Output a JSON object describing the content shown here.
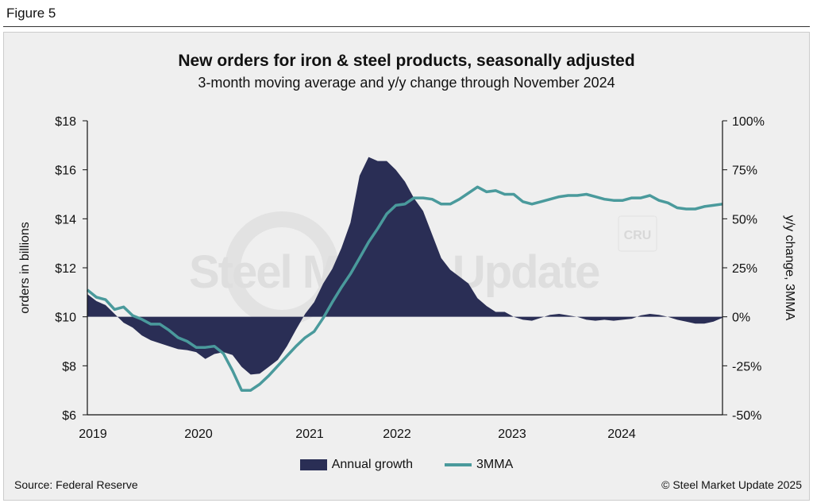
{
  "figure_label": "Figure 5",
  "source": "Source: Federal Reserve",
  "copyright": "© Steel Market Update 2025",
  "watermark": "Steel Market Update",
  "watermark_badge": "CRU",
  "chart_data": {
    "type": "line",
    "title": "New orders for iron & steel products, seasonally adjusted",
    "subtitle": "3-month moving average and y/y change through November 2024",
    "ylabel": "orders in billions",
    "y2label": "y/y change, 3MMA",
    "ylim": [
      6,
      18
    ],
    "y2lim": [
      -50,
      100
    ],
    "yticks": [
      "$18",
      "$16",
      "$14",
      "$12",
      "$10",
      "$8",
      "$6"
    ],
    "y2ticks": [
      "100%",
      "75%",
      "50%",
      "25%",
      "0%",
      "-25%",
      "-50%"
    ],
    "xticks": [
      "2019",
      "2020",
      "2021",
      "2022",
      "2023",
      "2024"
    ],
    "x_start": "2019-01",
    "x_end": "2024-11",
    "colors": {
      "annual_growth": "#2a2e55",
      "mma": "#4a9a9c"
    },
    "series": [
      {
        "name": "Annual growth",
        "kind": "area",
        "axis": "right",
        "values": [
          11.6,
          8,
          6,
          1.5,
          -3,
          -5.5,
          -9.5,
          -12,
          -13.5,
          -15,
          -16.5,
          -17,
          -18,
          -21.5,
          -19,
          -18,
          -19.5,
          -25.5,
          -29.5,
          -29,
          -25.5,
          -22,
          -15,
          -6.5,
          1.5,
          7.5,
          17,
          24.5,
          35,
          48,
          72,
          81.5,
          79.5,
          79.5,
          75,
          69,
          60.5,
          54,
          42,
          30,
          24,
          20.5,
          17,
          9.5,
          5.5,
          2.5,
          2.5,
          0,
          -1.5,
          -2,
          -0.5,
          1,
          1.5,
          0.7,
          0,
          -1.5,
          -2,
          -1.5,
          -2,
          -1.5,
          -1,
          0.7,
          1.5,
          1,
          0,
          -1.5,
          -2.5,
          -3.5,
          -3.5,
          -2.5,
          -0.5
        ]
      },
      {
        "name": "3MMA",
        "kind": "line",
        "axis": "left",
        "values": [
          11.1,
          10.8,
          10.7,
          10.3,
          10.4,
          10.05,
          9.9,
          9.7,
          9.7,
          9.45,
          9.15,
          9.0,
          8.75,
          8.75,
          8.8,
          8.5,
          7.8,
          7.0,
          7.0,
          7.25,
          7.6,
          8.0,
          8.4,
          8.8,
          9.15,
          9.4,
          9.95,
          10.6,
          11.2,
          11.75,
          12.4,
          13.05,
          13.6,
          14.2,
          14.55,
          14.6,
          14.85,
          14.85,
          14.8,
          14.6,
          14.6,
          14.8,
          15.05,
          15.3,
          15.1,
          15.15,
          15.0,
          15.0,
          14.7,
          14.6,
          14.7,
          14.8,
          14.9,
          14.95,
          14.95,
          15.0,
          14.9,
          14.8,
          14.75,
          14.75,
          14.85,
          14.85,
          14.95,
          14.75,
          14.65,
          14.45,
          14.4,
          14.4,
          14.5,
          14.55,
          14.6
        ]
      }
    ],
    "legend": "bottom"
  }
}
